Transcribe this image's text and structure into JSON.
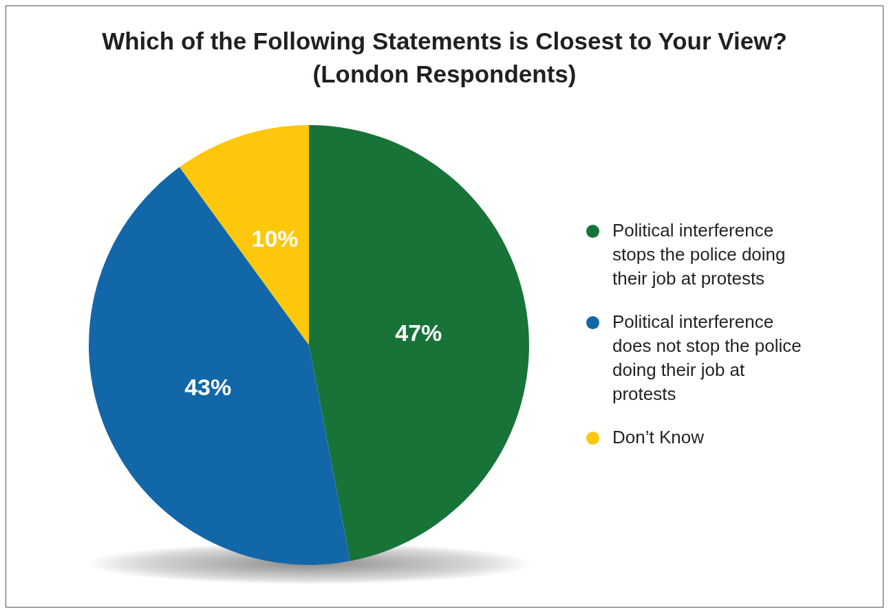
{
  "chart_data": {
    "type": "pie",
    "title": "Which of the Following Statements is Closest to Your View?\n(London Respondents)",
    "categories": [
      "Political interference stops the police doing their job at protests",
      "Political interference does not stop the police doing their job at protests",
      "Don’t Know"
    ],
    "values": [
      47,
      43,
      10
    ],
    "colors": [
      "#177338",
      "#1267a8",
      "#fdc70c"
    ],
    "value_labels": [
      "47%",
      "43%",
      "10%"
    ],
    "legend": "right"
  }
}
